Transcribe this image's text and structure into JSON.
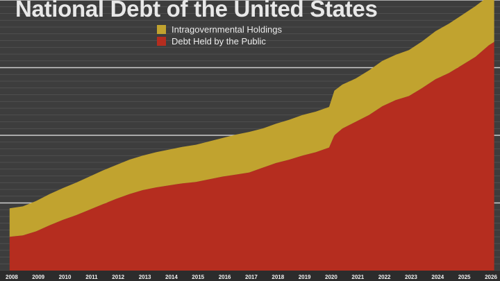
{
  "chart_data": {
    "type": "area",
    "title": "National Debt of the United States",
    "xlabel": "",
    "ylabel": "",
    "stacked": true,
    "grid": true,
    "legend_position": "top-center",
    "x_ticks": [
      "2008",
      "2009",
      "2010",
      "2011",
      "2012",
      "2013",
      "2014",
      "2015",
      "2016",
      "2017",
      "2018",
      "2019",
      "2020",
      "2021",
      "2022",
      "2023",
      "2024",
      "2025",
      "2026"
    ],
    "x": [
      2008.0,
      2008.5,
      2009.0,
      2009.5,
      2010.0,
      2010.5,
      2011.0,
      2011.5,
      2012.0,
      2012.5,
      2013.0,
      2013.5,
      2014.0,
      2014.5,
      2015.0,
      2015.5,
      2016.0,
      2016.5,
      2017.0,
      2017.5,
      2018.0,
      2018.5,
      2019.0,
      2019.5,
      2020.0,
      2020.2,
      2020.5,
      2021.0,
      2021.5,
      2022.0,
      2022.5,
      2023.0,
      2023.5,
      2024.0,
      2024.5,
      2025.0,
      2025.5,
      2026.0,
      2026.2
    ],
    "series": [
      {
        "name": "Debt Held by the Public",
        "color": "#b52d1f",
        "values": [
          5.0,
          5.2,
          5.8,
          6.7,
          7.5,
          8.2,
          9.0,
          9.8,
          10.6,
          11.3,
          11.9,
          12.3,
          12.6,
          12.9,
          13.1,
          13.5,
          13.9,
          14.2,
          14.5,
          15.2,
          15.9,
          16.4,
          17.0,
          17.5,
          18.2,
          20.0,
          21.0,
          22.0,
          23.0,
          24.3,
          25.2,
          25.8,
          27.0,
          28.3,
          29.2,
          30.4,
          31.6,
          33.3,
          33.8
        ]
      },
      {
        "name": "Intragovernmental Holdings",
        "color": "#c1a32f",
        "values": [
          4.2,
          4.3,
          4.5,
          4.6,
          4.7,
          4.8,
          4.9,
          5.0,
          5.0,
          5.1,
          5.1,
          5.2,
          5.3,
          5.4,
          5.5,
          5.6,
          5.7,
          5.9,
          6.0,
          5.8,
          5.8,
          5.9,
          6.0,
          6.0,
          6.0,
          6.6,
          6.5,
          6.4,
          6.6,
          6.7,
          6.7,
          6.8,
          6.9,
          7.1,
          7.3,
          7.4,
          7.5,
          7.3,
          7.3
        ]
      }
    ],
    "xlim": [
      2007.64,
      2026.42
    ],
    "ylim": [
      0,
      40
    ]
  },
  "colors": {
    "background": "#3d3d3d",
    "gridline": "#cfcfcf",
    "axis_band": "#2c2c2c",
    "tick_text": "#f2f2f2",
    "title_text": "#e8e8e8"
  }
}
